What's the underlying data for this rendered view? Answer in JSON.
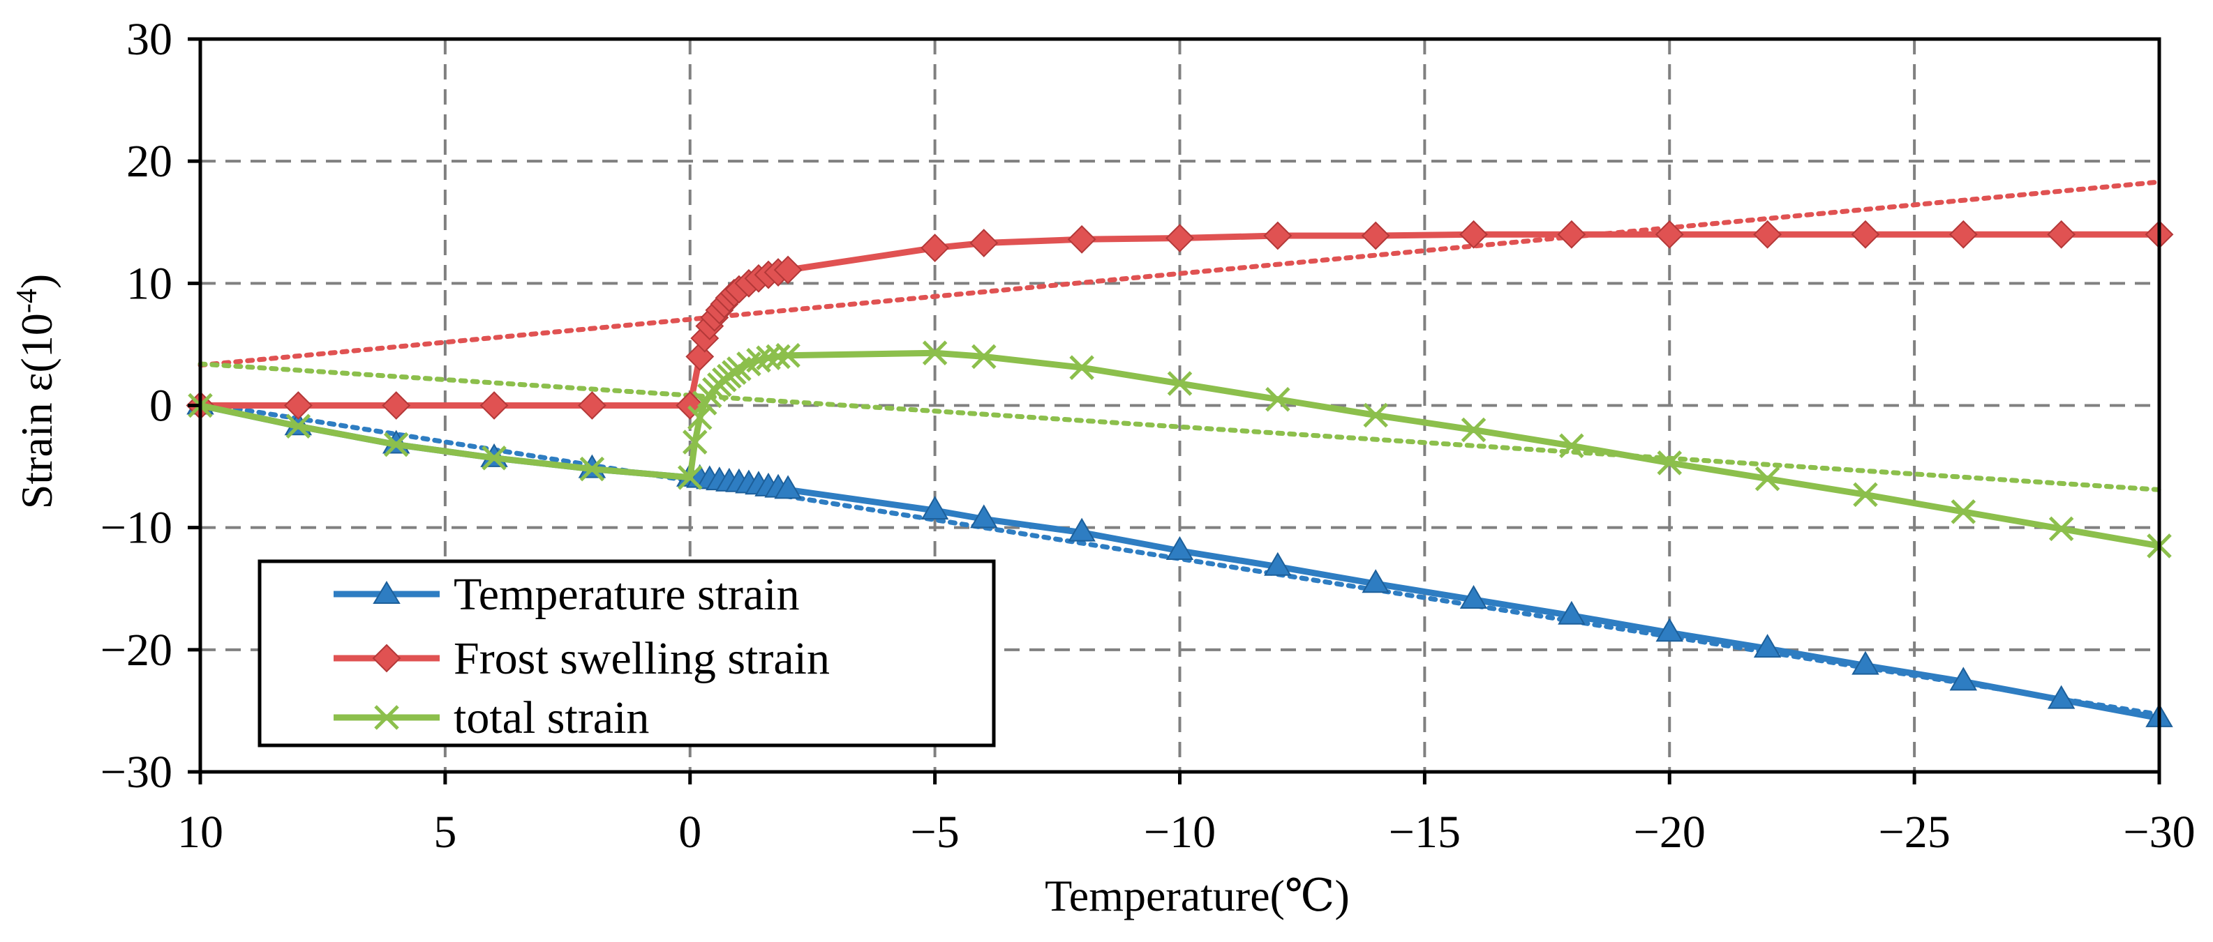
{
  "chart_data": {
    "type": "line",
    "title": "",
    "xlabel": "Temperature(℃)",
    "ylabel": "Strain ε(10",
    "ylabel_exponent": "-4",
    "ylabel_close": ")",
    "xlim": [
      10,
      -30
    ],
    "ylim": [
      -30,
      30
    ],
    "x_ticks": [
      10,
      5,
      0,
      -5,
      -10,
      -15,
      -20,
      -25,
      -30
    ],
    "x_tick_labels": [
      "10",
      "5",
      "0",
      "−5",
      "−10",
      "−15",
      "−20",
      "−25",
      "−30"
    ],
    "y_ticks": [
      30,
      20,
      10,
      0,
      -10,
      -20,
      -30
    ],
    "y_tick_labels": [
      "30",
      "20",
      "10",
      "0",
      "−10",
      "−20",
      "−30"
    ],
    "grid": true,
    "legend_position": "bottom-left",
    "series": [
      {
        "name": "Temperature strain",
        "color": "#2e7dc2",
        "marker": "triangle",
        "x": [
          10,
          8,
          6,
          4,
          2,
          0,
          -0.2,
          -0.4,
          -0.6,
          -0.8,
          -1,
          -1.2,
          -1.4,
          -1.6,
          -1.8,
          -2,
          -5,
          -6,
          -8,
          -10,
          -12,
          -14,
          -16,
          -18,
          -20,
          -22,
          -24,
          -26,
          -28,
          -30
        ],
        "y": [
          0,
          -1.7,
          -3.2,
          -4.3,
          -5.2,
          -5.9,
          -6.0,
          -6.1,
          -6.2,
          -6.3,
          -6.35,
          -6.45,
          -6.55,
          -6.7,
          -6.8,
          -6.9,
          -8.6,
          -9.3,
          -10.4,
          -11.9,
          -13.2,
          -14.6,
          -15.9,
          -17.2,
          -18.6,
          -19.9,
          -21.3,
          -22.6,
          -24.1,
          -25.6
        ],
        "trendline": {
          "x": [
            10,
            -30
          ],
          "y": [
            0.2,
            -25.3
          ]
        }
      },
      {
        "name": "Frost swelling strain",
        "color": "#e05252",
        "marker": "diamond",
        "x": [
          10,
          8,
          6,
          4,
          2,
          0,
          -0.2,
          -0.3,
          -0.4,
          -0.5,
          -0.6,
          -0.7,
          -0.8,
          -0.9,
          -1,
          -1.2,
          -1.4,
          -1.6,
          -1.8,
          -2,
          -5,
          -6,
          -8,
          -10,
          -12,
          -14,
          -16,
          -18,
          -20,
          -22,
          -24,
          -26,
          -28,
          -30
        ],
        "y": [
          0,
          0,
          0,
          0,
          0,
          0,
          4.0,
          5.5,
          6.5,
          7.2,
          7.8,
          8.3,
          8.8,
          9.2,
          9.5,
          10.0,
          10.4,
          10.7,
          10.9,
          11.1,
          12.9,
          13.3,
          13.6,
          13.7,
          13.9,
          13.9,
          14.0,
          14.0,
          14.0,
          14.0,
          14.0,
          14.0,
          14.0,
          14.0
        ],
        "trendline": {
          "x": [
            10,
            -30
          ],
          "y": [
            3.3,
            18.3
          ]
        }
      },
      {
        "name": "total strain",
        "color": "#8cbf4c",
        "marker": "x",
        "x": [
          10,
          8,
          6,
          4,
          2,
          0,
          -0.1,
          -0.2,
          -0.3,
          -0.4,
          -0.5,
          -0.6,
          -0.7,
          -0.8,
          -0.9,
          -1,
          -1.2,
          -1.4,
          -1.6,
          -1.8,
          -2,
          -5,
          -6,
          -8,
          -10,
          -12,
          -14,
          -16,
          -18,
          -20,
          -22,
          -24,
          -26,
          -28,
          -30
        ],
        "y": [
          0,
          -1.7,
          -3.2,
          -4.3,
          -5.2,
          -5.9,
          -3.0,
          -1.0,
          0.2,
          0.8,
          1.3,
          1.7,
          2.1,
          2.4,
          2.7,
          3.0,
          3.4,
          3.7,
          3.9,
          4.0,
          4.1,
          4.3,
          4.0,
          3.1,
          1.8,
          0.5,
          -0.8,
          -2.0,
          -3.3,
          -4.7,
          -6.0,
          -7.3,
          -8.7,
          -10.1,
          -11.5
        ],
        "trendline": {
          "x": [
            10,
            -30
          ],
          "y": [
            3.4,
            -6.9
          ]
        }
      }
    ]
  }
}
